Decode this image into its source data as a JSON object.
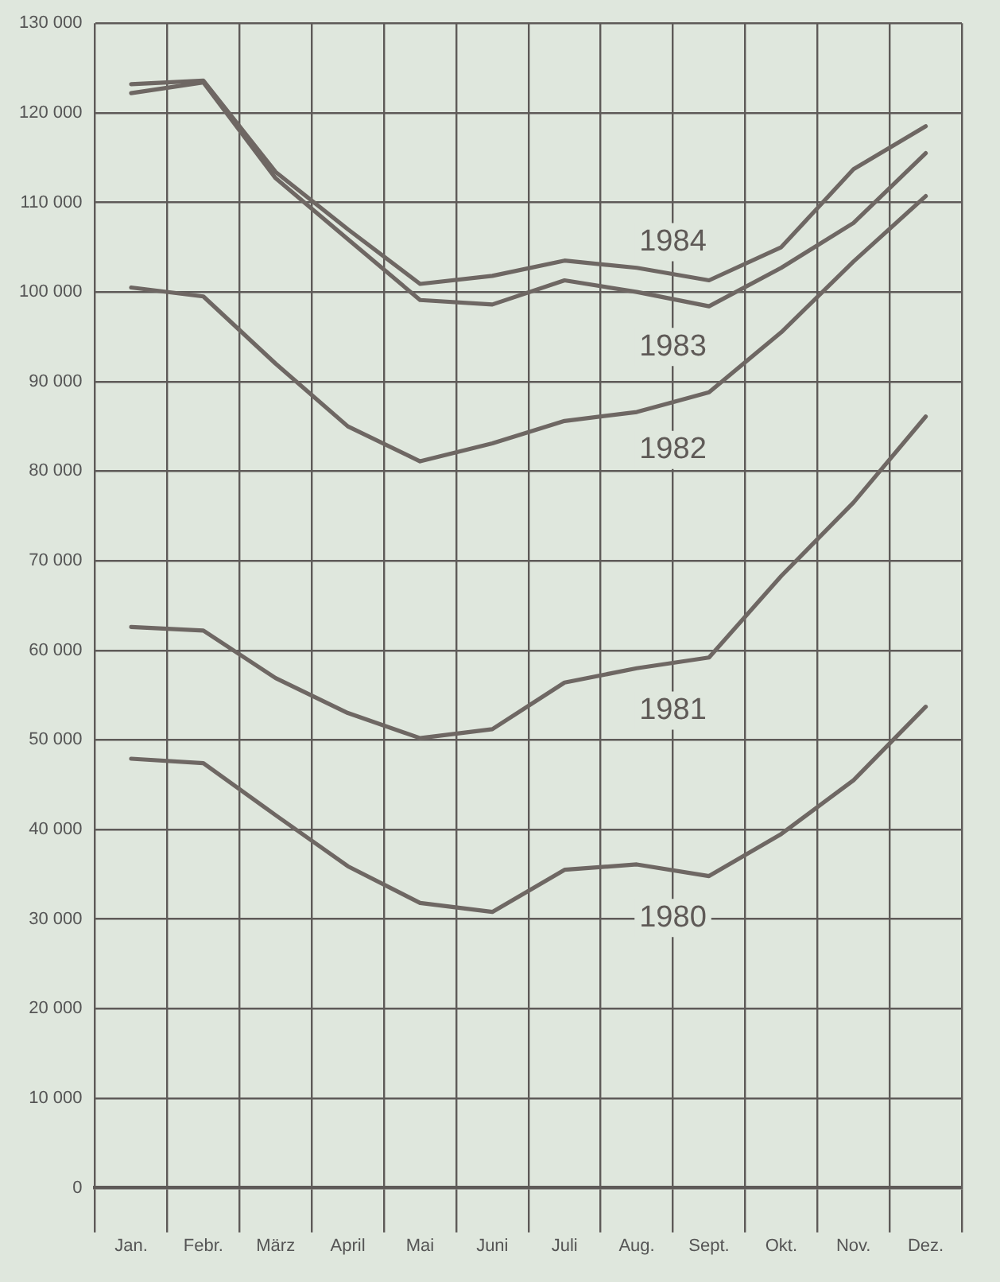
{
  "chart_data": {
    "type": "line",
    "categories": [
      "Jan.",
      "Febr.",
      "März",
      "April",
      "Mai",
      "Juni",
      "Juli",
      "Aug.",
      "Sept.",
      "Okt.",
      "Nov.",
      "Dez."
    ],
    "series": [
      {
        "name": "1984",
        "color": "#6e6763",
        "values": [
          123200,
          123600,
          113400,
          107000,
          100900,
          101800,
          103500,
          102700,
          101300,
          105000,
          113700,
          118500
        ]
      },
      {
        "name": "1983",
        "color": "#6e6763",
        "values": [
          122200,
          123400,
          112700,
          105900,
          99100,
          98600,
          101300,
          100000,
          98400,
          102700,
          107700,
          115500
        ]
      },
      {
        "name": "1982",
        "color": "#6e6763",
        "values": [
          100500,
          99500,
          92000,
          85000,
          81100,
          83100,
          85600,
          86600,
          88800,
          95500,
          103400,
          110700
        ]
      },
      {
        "name": "1981",
        "color": "#6e6763",
        "values": [
          62600,
          62200,
          56900,
          53000,
          50200,
          51200,
          56400,
          58000,
          59200,
          68300,
          76500,
          86100
        ]
      },
      {
        "name": "1980",
        "color": "#6e6763",
        "values": [
          47900,
          47400,
          41600,
          35900,
          31800,
          30800,
          35500,
          36100,
          34800,
          39500,
          45500,
          53700
        ]
      }
    ],
    "ylim": [
      0,
      130000
    ],
    "yticks": [
      {
        "value": 0,
        "label": "0"
      },
      {
        "value": 10000,
        "label": "10 000"
      },
      {
        "value": 20000,
        "label": "20 000"
      },
      {
        "value": 30000,
        "label": "30 000"
      },
      {
        "value": 40000,
        "label": "40 000"
      },
      {
        "value": 50000,
        "label": "50 000"
      },
      {
        "value": 60000,
        "label": "60 000"
      },
      {
        "value": 70000,
        "label": "70 000"
      },
      {
        "value": 80000,
        "label": "80 000"
      },
      {
        "value": 90000,
        "label": "90 000"
      },
      {
        "value": 100000,
        "label": "100 000"
      },
      {
        "value": 110000,
        "label": "110 000"
      },
      {
        "value": 120000,
        "label": "120 000"
      },
      {
        "value": 130000,
        "label": "130 000"
      }
    ],
    "grid": true,
    "legend": false,
    "marker": "none",
    "line_style": "solid"
  }
}
